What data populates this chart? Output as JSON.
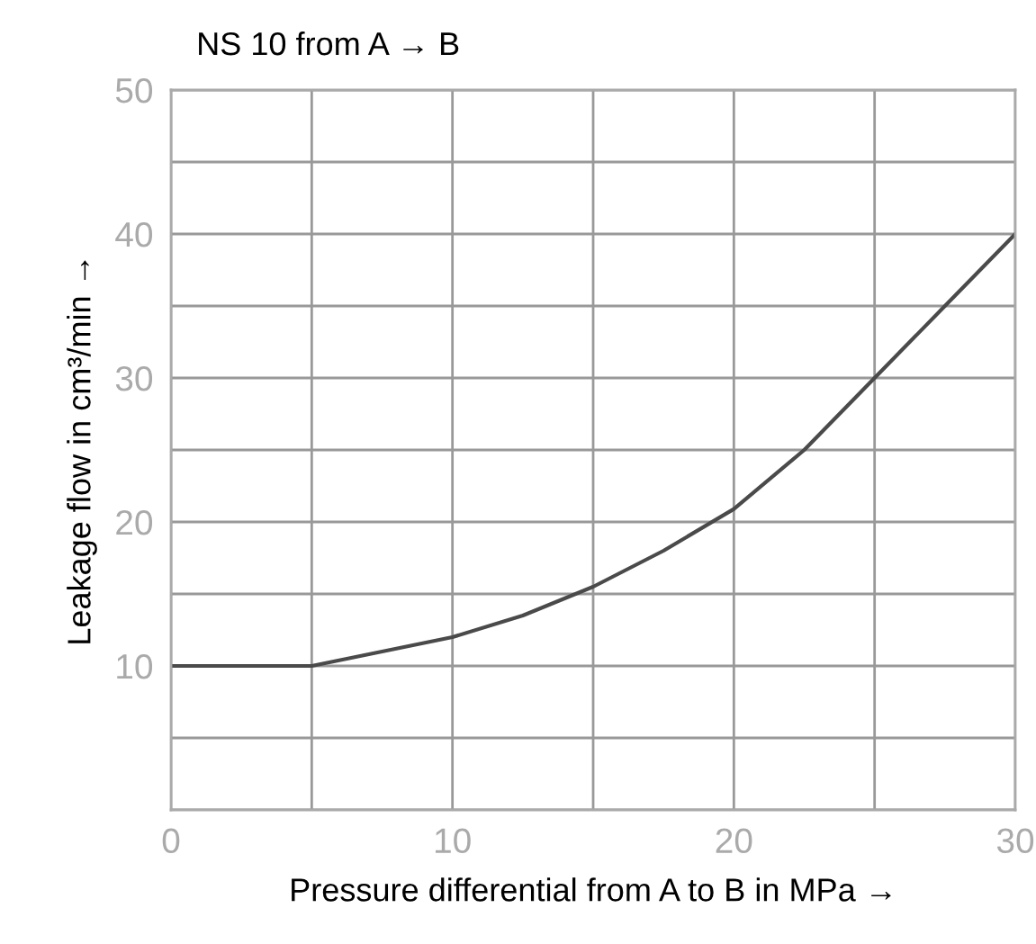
{
  "chart_data": {
    "type": "line",
    "title": "NS 10 from A → B",
    "xlabel": "Pressure differential from A to B in MPa →",
    "ylabel": "Leakage flow in cm³/min →",
    "x": [
      0,
      5,
      7.5,
      10,
      12.5,
      15,
      17.5,
      20,
      22.5,
      25,
      27.5,
      30
    ],
    "series": [
      {
        "color": "#4a4a4a",
        "values": [
          10,
          10,
          11,
          12,
          13.5,
          15.5,
          18,
          20.9,
          25,
          30,
          35,
          40
        ]
      }
    ],
    "xlim": [
      0,
      30
    ],
    "ylim": [
      0,
      50
    ],
    "xticks": [
      0,
      {
        "value": 5,
        "label": null
      },
      10,
      {
        "value": 15,
        "label": null
      },
      20,
      {
        "value": 25,
        "label": null
      },
      30
    ],
    "yticks": [
      {
        "value": 0,
        "label": null
      },
      {
        "value": 5,
        "label": null
      },
      10,
      {
        "value": 15,
        "label": null
      },
      20,
      {
        "value": 25,
        "label": null
      },
      30,
      {
        "value": 35,
        "label": null
      },
      40,
      {
        "value": 45,
        "label": null
      },
      50
    ],
    "grid": true,
    "marker": "none",
    "line_style": "solid"
  }
}
